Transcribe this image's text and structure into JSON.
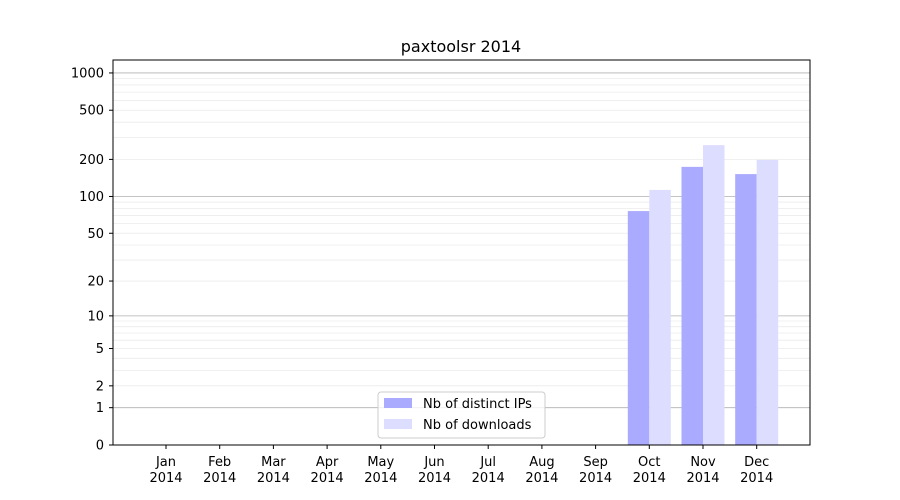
{
  "chart_data": {
    "type": "bar",
    "title": "paxtoolsr 2014",
    "xlabel": "",
    "ylabel": "",
    "yscale": "symlog (log10(y+1))",
    "ylim": [
      0,
      1270
    ],
    "grid": true,
    "legend_position": "bottom-center",
    "categories": [
      "Jan\n2014",
      "Feb\n2014",
      "Mar\n2014",
      "Apr\n2014",
      "May\n2014",
      "Jun\n2014",
      "Jul\n2014",
      "Aug\n2014",
      "Sep\n2014",
      "Oct\n2014",
      "Nov\n2014",
      "Dec\n2014"
    ],
    "yticks": [
      0,
      1,
      2,
      5,
      10,
      20,
      50,
      100,
      200,
      500,
      1000
    ],
    "series": [
      {
        "name": "Nb of distinct IPs",
        "color": "#aaaaff",
        "values": [
          0,
          0,
          0,
          0,
          0,
          0,
          0,
          0,
          0,
          76,
          174,
          152
        ]
      },
      {
        "name": "Nb of downloads",
        "color": "#ddddff",
        "values": [
          0,
          0,
          0,
          0,
          0,
          0,
          0,
          0,
          0,
          113,
          261,
          198
        ]
      }
    ]
  }
}
